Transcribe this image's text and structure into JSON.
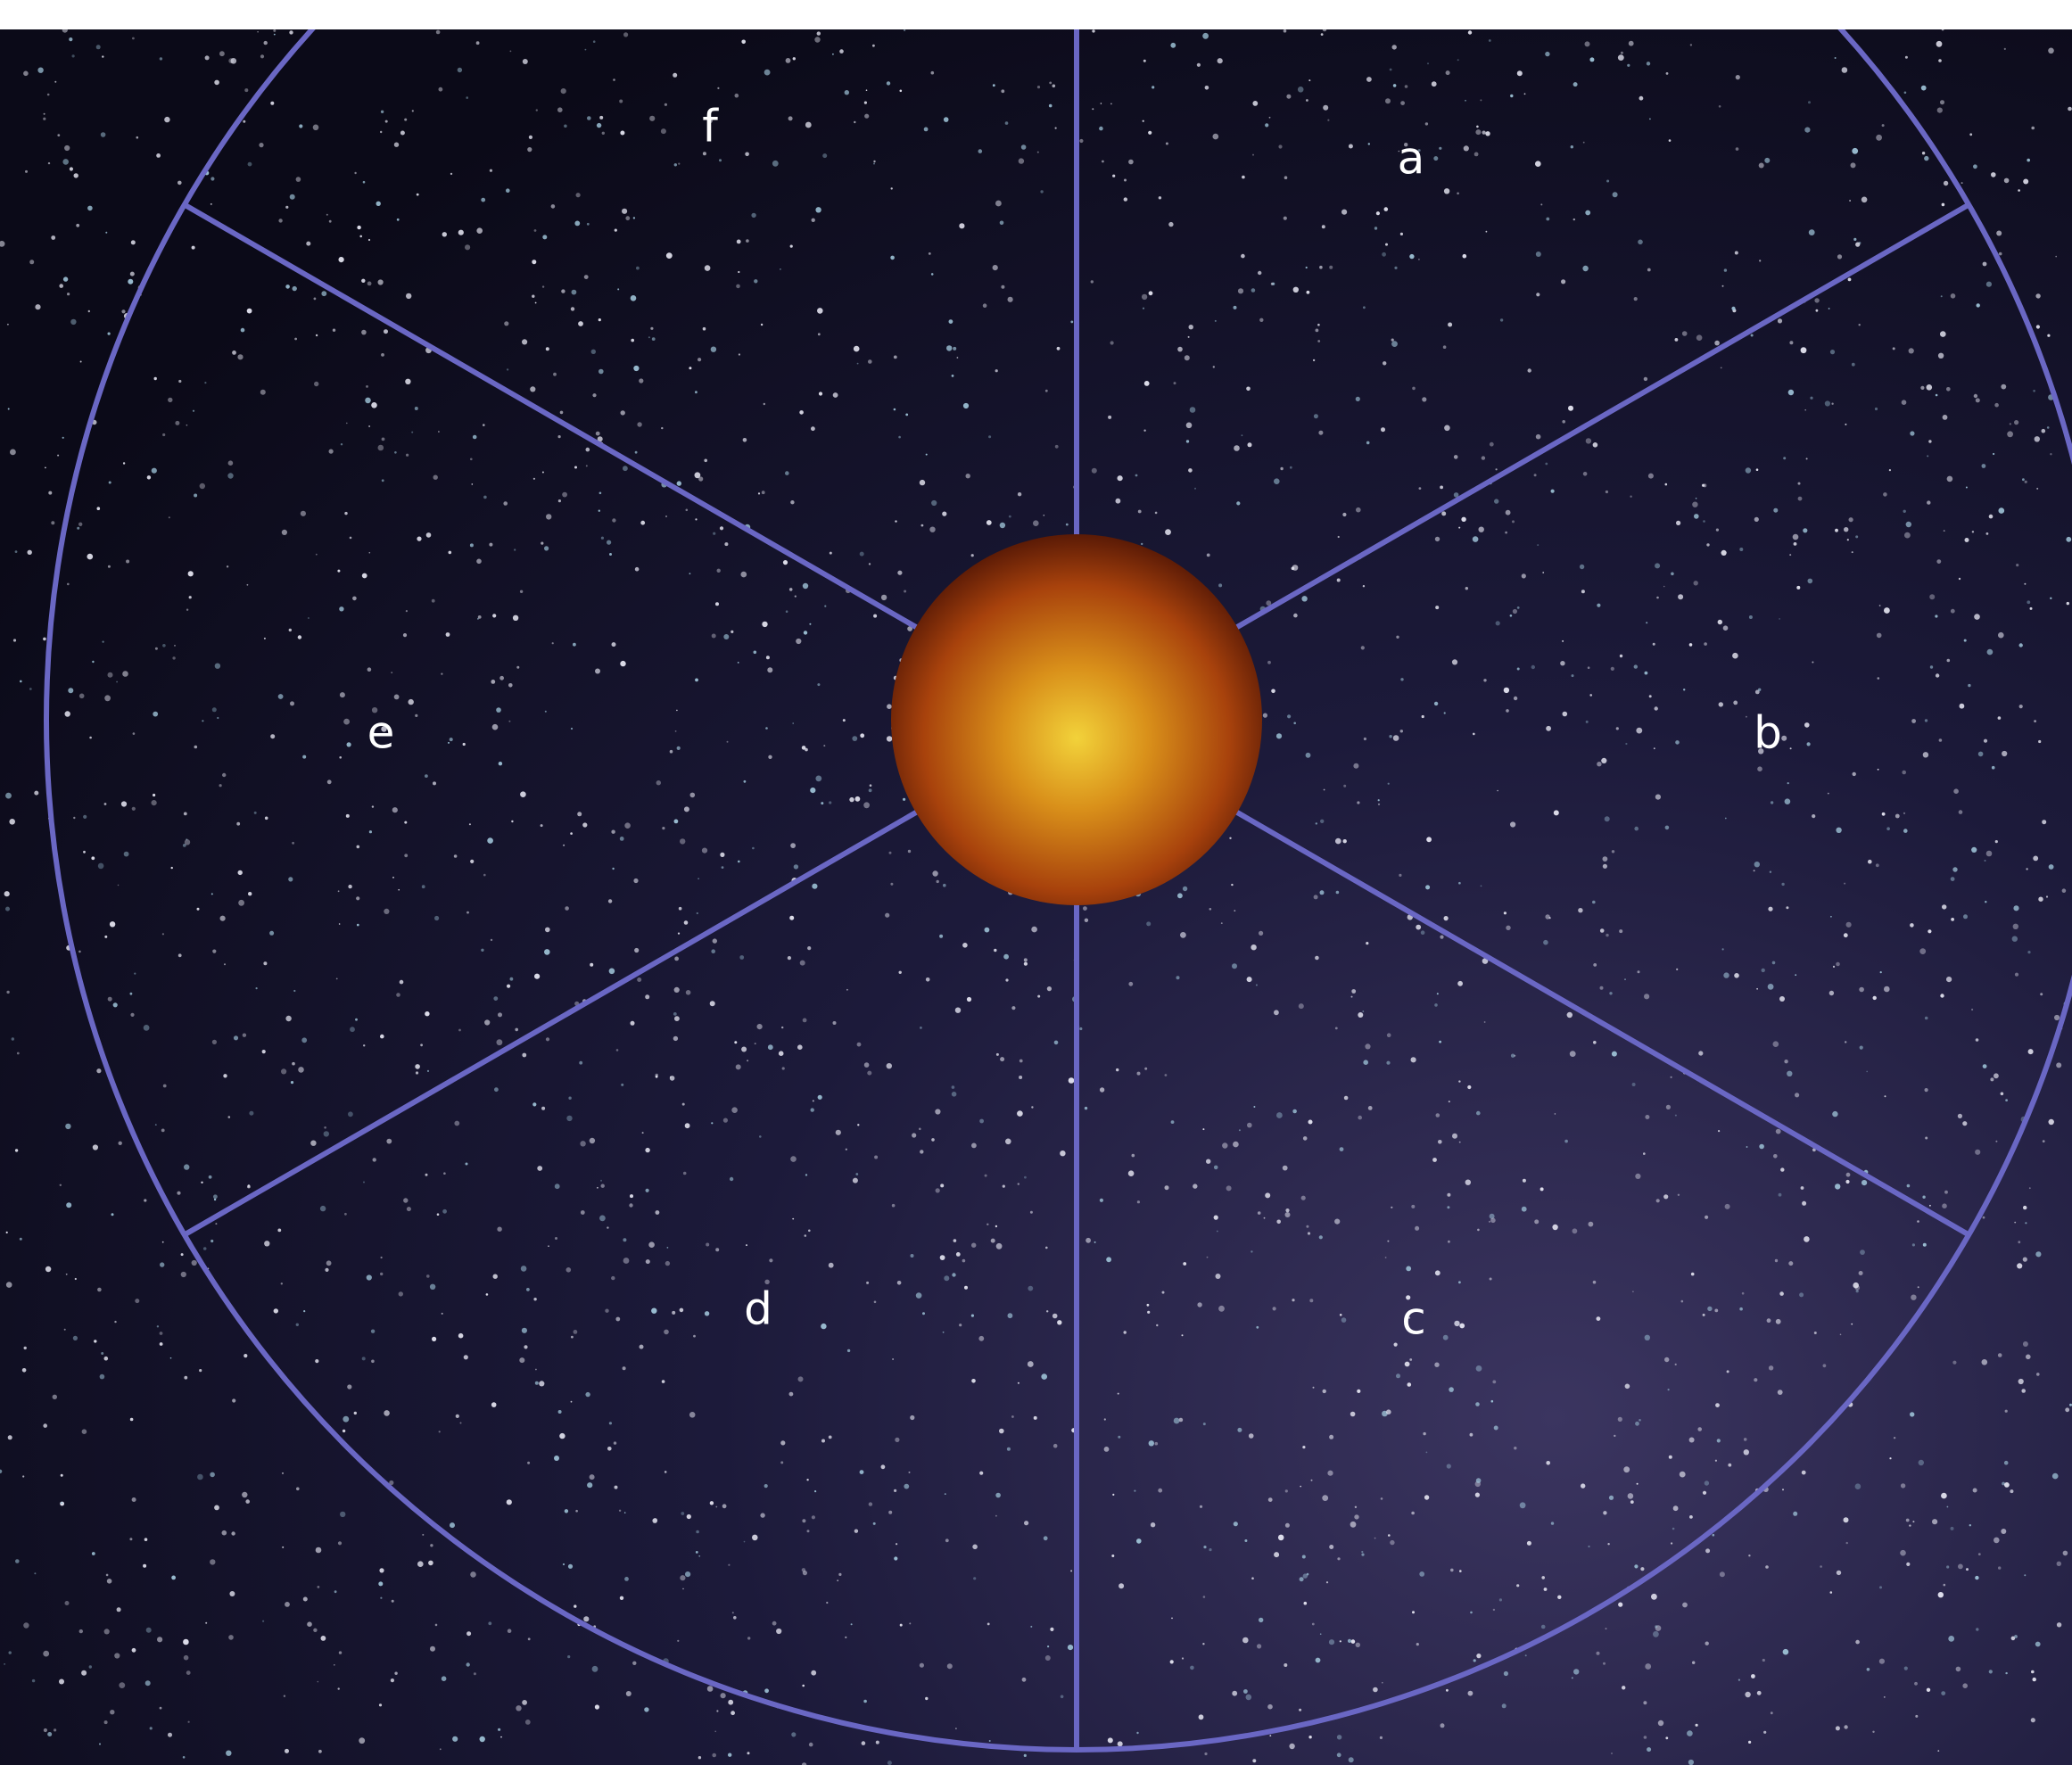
{
  "sectors": [
    "a",
    "b",
    "c",
    "d",
    "e",
    "f"
  ]
}
